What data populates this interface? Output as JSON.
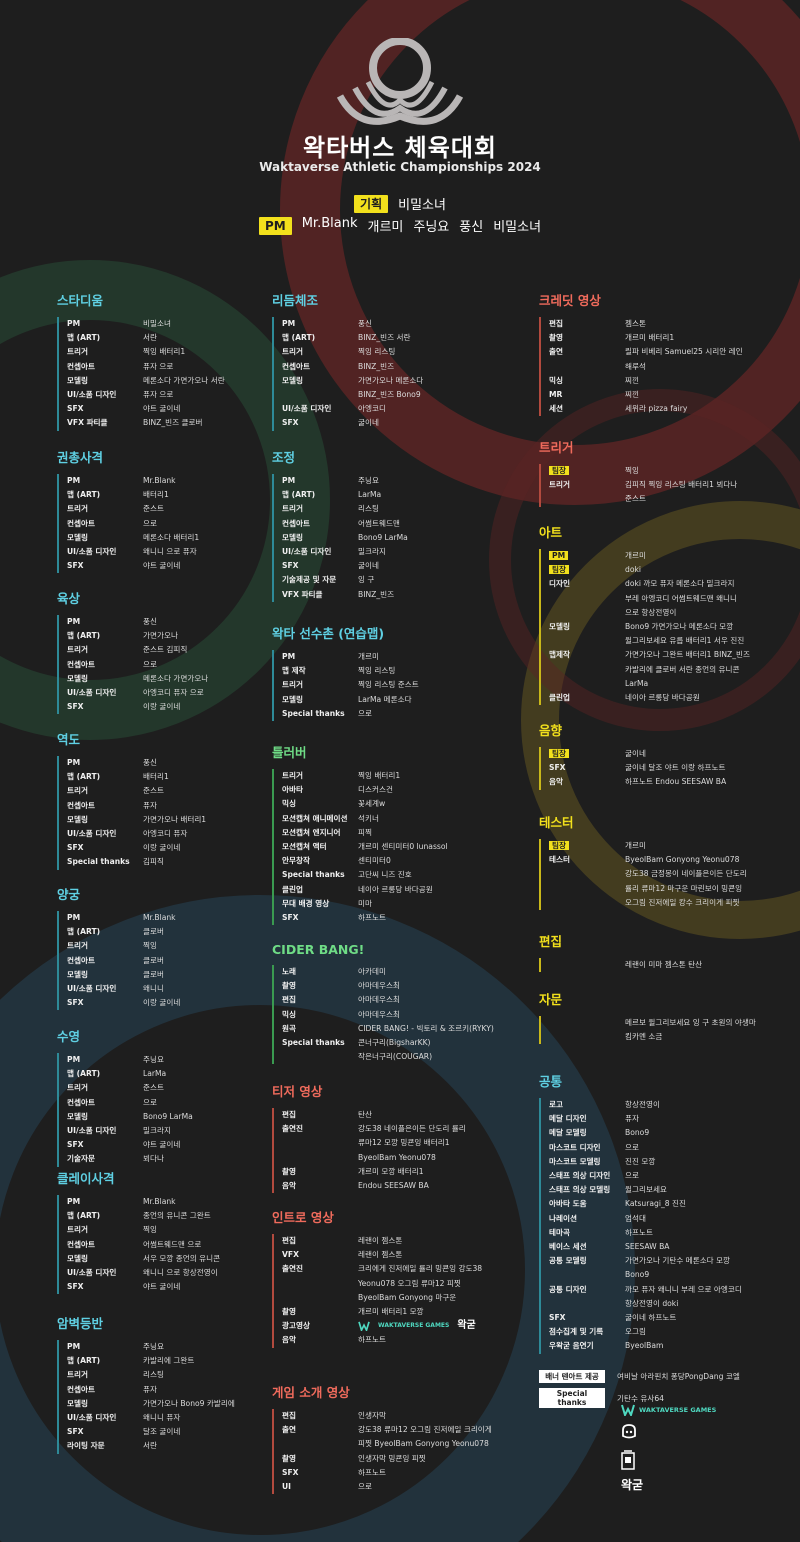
{
  "header": {
    "title": "왁타버스 체육대회",
    "subtitle": "Waktaverse Athletic Championships 2024",
    "planning_label": "기획",
    "planning_names": [
      "비밀소녀"
    ],
    "pm_label": "PM",
    "pm_names": [
      "Mr.Blank",
      "개르미",
      "주닝요",
      "풍신",
      "비밀소녀"
    ]
  },
  "colors": {
    "background": "#1e1e1e",
    "blue": "#5fd0e3",
    "green": "#6fdc86",
    "red": "#f06b5c",
    "yellow": "#f2e01c"
  },
  "columns": {
    "left": [
      {
        "title": "스타디움",
        "color": "blue",
        "rows": [
          {
            "role": "PM",
            "names": "비밀소녀"
          },
          {
            "role": "맵 (ART)",
            "names": "서란"
          },
          {
            "role": "트리거",
            "names": "찍잉  배터리1"
          },
          {
            "role": "컨셉아트",
            "names": "퓨자  으로"
          },
          {
            "role": "모델링",
            "names": "메론소다  가면가오나  서란"
          },
          {
            "role": "UI/소품 디자인",
            "names": "퓨자  으로"
          },
          {
            "role": "SFX",
            "names": "야트  굴이네"
          },
          {
            "role": "VFX 파티클",
            "names": "BINZ_빈즈  클로버"
          }
        ]
      },
      {
        "title": "권총사격",
        "color": "blue",
        "rows": [
          {
            "role": "PM",
            "names": "Mr.Blank"
          },
          {
            "role": "맵 (ART)",
            "names": "배터리1"
          },
          {
            "role": "트리거",
            "names": "준스트"
          },
          {
            "role": "컨셉아트",
            "names": "으로"
          },
          {
            "role": "모델링",
            "names": "메론소다  배터리1"
          },
          {
            "role": "UI/소품 디자인",
            "names": "왜니니  으로  퓨자"
          },
          {
            "role": "SFX",
            "names": "야트  굴이네"
          }
        ]
      },
      {
        "title": "육상",
        "color": "blue",
        "rows": [
          {
            "role": "PM",
            "names": "풍신"
          },
          {
            "role": "맵 (ART)",
            "names": "가면가오나"
          },
          {
            "role": "트리거",
            "names": "준스트  김피직"
          },
          {
            "role": "컨셉아트",
            "names": "으로"
          },
          {
            "role": "모델링",
            "names": "메론소다  가면가오나"
          },
          {
            "role": "UI/소품 디자인",
            "names": "아엥코디  퓨자  으로"
          },
          {
            "role": "SFX",
            "names": "이랑  굴이네"
          }
        ]
      },
      {
        "title": "역도",
        "color": "blue",
        "rows": [
          {
            "role": "PM",
            "names": "풍신"
          },
          {
            "role": "맵 (ART)",
            "names": "배터리1"
          },
          {
            "role": "트리거",
            "names": "준스트"
          },
          {
            "role": "컨셉아트",
            "names": "퓨자"
          },
          {
            "role": "모델링",
            "names": "가면가오나  배터리1"
          },
          {
            "role": "UI/소품 디자인",
            "names": "아엥코디  퓨자"
          },
          {
            "role": "SFX",
            "names": "이랑  굴이네"
          },
          {
            "role": "Special thanks",
            "names": "김피직"
          }
        ]
      },
      {
        "title": "양궁",
        "color": "blue",
        "rows": [
          {
            "role": "PM",
            "names": "Mr.Blank"
          },
          {
            "role": "맵 (ART)",
            "names": "클로버"
          },
          {
            "role": "트리거",
            "names": "찍잉"
          },
          {
            "role": "컨셉아트",
            "names": "클로버"
          },
          {
            "role": "모델링",
            "names": "클로버"
          },
          {
            "role": "UI/소품 디자인",
            "names": "왜니니"
          },
          {
            "role": "SFX",
            "names": "이랑  굴이네"
          }
        ]
      },
      {
        "title": "수영",
        "color": "blue",
        "rows": [
          {
            "role": "PM",
            "names": "주닝요"
          },
          {
            "role": "맵 (ART)",
            "names": "LarMa"
          },
          {
            "role": "트리거",
            "names": "준스트"
          },
          {
            "role": "컨셉아트",
            "names": "으로"
          },
          {
            "role": "모델링",
            "names": "Bono9  LarMa"
          },
          {
            "role": "UI/소품 디자인",
            "names": "밀크라지"
          },
          {
            "role": "SFX",
            "names": "야트  굴이네"
          },
          {
            "role": "기술자문",
            "names": "뵈다나"
          }
        ]
      },
      {
        "title": "클레이사격",
        "color": "blue",
        "rows": [
          {
            "role": "PM",
            "names": "Mr.Blank"
          },
          {
            "role": "맵 (ART)",
            "names": "종언의 유니콘  그완트"
          },
          {
            "role": "트리거",
            "names": "찍잉"
          },
          {
            "role": "컨셉아트",
            "names": "어썸트웨드맨  으로"
          },
          {
            "role": "모델링",
            "names": "서우  모깡  종언의 유니콘"
          },
          {
            "role": "UI/소품 디자인",
            "names": "왜니니  으로  항상전영이"
          },
          {
            "role": "SFX",
            "names": "야트  굴이네"
          }
        ]
      },
      {
        "title": "암벽등반",
        "color": "blue",
        "rows": [
          {
            "role": "PM",
            "names": "주닝요"
          },
          {
            "role": "맵 (ART)",
            "names": "카발리에  그완트"
          },
          {
            "role": "트리거",
            "names": "리스팅"
          },
          {
            "role": "컨셉아트",
            "names": "퓨자"
          },
          {
            "role": "모델링",
            "names": "가면가오나  Bono9  카발리에"
          },
          {
            "role": "UI/소품 디자인",
            "names": "왜니니  퓨자"
          },
          {
            "role": "SFX",
            "names": "달조  굴이네"
          },
          {
            "role": "라이팅 자문",
            "names": "서란"
          }
        ]
      }
    ],
    "middle": [
      {
        "title": "리듬체조",
        "color": "blue",
        "rows": [
          {
            "role": "PM",
            "names": "풍신"
          },
          {
            "role": "맵 (ART)",
            "names": "BINZ_빈즈  서란"
          },
          {
            "role": "트리거",
            "names": "찍잉  리스팅"
          },
          {
            "role": "컨셉아트",
            "names": "BINZ_빈즈"
          },
          {
            "role": "모델링",
            "names": "가면가오나  메론소다"
          },
          {
            "role": "",
            "names": "BINZ_빈즈  Bono9"
          },
          {
            "role": "UI/소품 디자인",
            "names": "아엥코디"
          },
          {
            "role": "SFX",
            "names": "굴이네"
          }
        ]
      },
      {
        "title": "조정",
        "color": "blue",
        "rows": [
          {
            "role": "PM",
            "names": "주닝요"
          },
          {
            "role": "맵 (ART)",
            "names": "LarMa"
          },
          {
            "role": "트리거",
            "names": "리스팅"
          },
          {
            "role": "컨셉아트",
            "names": "어썸트웨드맨"
          },
          {
            "role": "모델링",
            "names": "Bono9  LarMa"
          },
          {
            "role": "UI/소품 디자인",
            "names": "밀크라지"
          },
          {
            "role": "SFX",
            "names": "굴이네"
          },
          {
            "role": "기술제공 및 자문",
            "names": "잉 구"
          },
          {
            "role": "VFX 파티클",
            "names": "BINZ_빈즈"
          }
        ]
      },
      {
        "title": "왁타 선수촌 (연습맵)",
        "color": "blue",
        "rows": [
          {
            "role": "PM",
            "names": "개르미"
          },
          {
            "role": "맵 제작",
            "names": "찍잉  리스팅"
          },
          {
            "role": "트리거",
            "names": "찍잉  리스팅  준스트"
          },
          {
            "role": "모델링",
            "names": "LarMa  메론소다"
          },
          {
            "role": "Special thanks",
            "names": "으로"
          }
        ]
      },
      {
        "title": "틀러버",
        "color": "green",
        "rows": [
          {
            "role": "트리거",
            "names": "찍잉  배터리1"
          },
          {
            "role": "아바타",
            "names": "디스커스건"
          },
          {
            "role": "믹싱",
            "names": "꽃세계w"
          },
          {
            "role": "모션캡쳐 애니메이션",
            "names": "석키너"
          },
          {
            "role": "모션캡쳐 엔지니어",
            "names": "피찍"
          },
          {
            "role": "모션캡쳐 액터",
            "names": "개르미  센티미터0  lunassol"
          },
          {
            "role": "안무창작",
            "names": "센티미터0"
          },
          {
            "role": "Special thanks",
            "names": "고단씨  니즈  진호"
          },
          {
            "role": "클린업",
            "names": "네이아  르롱당  바다공원"
          },
          {
            "role": "무대 배경 영상",
            "names": "미마"
          },
          {
            "role": "SFX",
            "names": "하프노트"
          }
        ]
      },
      {
        "title": "CIDER BANG!",
        "color": "green",
        "rows": [
          {
            "role": "노래",
            "names": "아카데미"
          },
          {
            "role": "촬영",
            "names": "아마데우스최"
          },
          {
            "role": "편집",
            "names": "아마데우스최"
          },
          {
            "role": "믹싱",
            "names": "아마데우스최"
          },
          {
            "role": "원곡",
            "names": "CIDER BANG! - 빅토리 & 조르키(RYKY)"
          },
          {
            "role": "Special thanks",
            "names": "콘너구리(BigsharKK)"
          },
          {
            "role": "",
            "names": "작은너구리(COUGAR)"
          }
        ]
      },
      {
        "title": "티저 영상",
        "color": "red",
        "rows": [
          {
            "role": "편집",
            "names": "탄산"
          },
          {
            "role": "출연진",
            "names": "강도38  네이플은이든  단도리  률리"
          },
          {
            "role": "",
            "names": "류마12  모깡  밍쿈잉  배터리1"
          },
          {
            "role": "",
            "names": "ByeolBam  Yeonu078"
          },
          {
            "role": "촬영",
            "names": "개르미  모깡  배터리1"
          },
          {
            "role": "음악",
            "names": "Endou  SEESAW BA"
          }
        ]
      },
      {
        "title": "인트로 영상",
        "color": "red",
        "rows": [
          {
            "role": "편집",
            "names": "레랜이  젬스톤"
          },
          {
            "role": "VFX",
            "names": "레랜이  젬스톤"
          },
          {
            "role": "출연진",
            "names": "크리에게  진저에일  률리  밍쿈잉  강도38"
          },
          {
            "role": "",
            "names": "Yeonu078  오그림  류마12  피찟"
          },
          {
            "role": "",
            "names": "ByeolBam  Gonyong  마구운"
          },
          {
            "role": "촬영",
            "names": "개르미  배터리1  모깡"
          },
          {
            "role": "광고영상",
            "names": ""
          },
          {
            "role": "음악",
            "names": "하프노트"
          }
        ]
      },
      {
        "title": "게임 소개 영상",
        "color": "red",
        "rows": [
          {
            "role": "편집",
            "names": "인생자막"
          },
          {
            "role": "출연",
            "names": "강도38  류마12  오그림  진저에일  크리이게"
          },
          {
            "role": "",
            "names": "피찟  ByeolBam  Gonyong  Yeonu078"
          },
          {
            "role": "촬영",
            "names": "인생자막  밍쿈잉  피찟"
          },
          {
            "role": "SFX",
            "names": "하프노트"
          },
          {
            "role": "UI",
            "names": "으로"
          }
        ]
      }
    ],
    "right": [
      {
        "title": "크레딧 영상",
        "color": "red",
        "rows": [
          {
            "role": "편집",
            "names": "젬스톤"
          },
          {
            "role": "촬영",
            "names": "개르미  배터리1"
          },
          {
            "role": "출연",
            "names": "릴파  비베리  Samuel25  시리안 레인"
          },
          {
            "role": "",
            "names": "해루석"
          },
          {
            "role": "믹싱",
            "names": "찌낀"
          },
          {
            "role": "MR",
            "names": "찌낀"
          },
          {
            "role": "세션",
            "names": "세위라  pizza fairy"
          }
        ]
      },
      {
        "title": "트리거",
        "color": "red",
        "rows": [
          {
            "role": "팀장",
            "tag": true,
            "names": "찍잉"
          },
          {
            "role": "트리거",
            "names": "김피직  찍잉  리스팅  배터리1  뵈다나"
          },
          {
            "role": "",
            "names": "준스트"
          }
        ]
      },
      {
        "title": "아트",
        "color": "yellow",
        "rows": [
          {
            "role": "PM",
            "tag": true,
            "names": "개르미"
          },
          {
            "role": "팀장",
            "tag": true,
            "names": "doki"
          },
          {
            "role": "디자인",
            "names": "doki  까모  퓨자  메론소다  밀크라지"
          },
          {
            "role": "",
            "names": "부레  아엥코디  어썸트웨드맨  왜니니"
          },
          {
            "role": "",
            "names": "으로  항상전영이"
          },
          {
            "role": "모델링",
            "names": "Bono9  가면가오나  메론소다  모깡"
          },
          {
            "role": "",
            "names": "윌그리보세요  유릅  배터리1  서우  진진"
          },
          {
            "role": "맵제작",
            "names": "가면가오나  그완트  배터리1  BINZ_빈즈"
          },
          {
            "role": "",
            "names": "카발리에  클로버  서란  종언의 유니콘"
          },
          {
            "role": "",
            "names": "LarMa"
          },
          {
            "role": "클린업",
            "names": "네이아  르롱당  바다공원"
          }
        ]
      },
      {
        "title": "음향",
        "color": "yellow",
        "rows": [
          {
            "role": "팀장",
            "tag": true,
            "names": "굴이네"
          },
          {
            "role": "SFX",
            "names": "굴이네  달조  야트  이랑  하프노트"
          },
          {
            "role": "음악",
            "names": "하프노트  Endou  SEESAW BA"
          }
        ]
      },
      {
        "title": "테스터",
        "color": "yellow",
        "rows": [
          {
            "role": "팀장",
            "tag": true,
            "names": "개르미"
          },
          {
            "role": "테스터",
            "names": "ByeolBam  Gonyong  Yeonu078"
          },
          {
            "role": "",
            "names": "강도38  금정몽이  네이플은이든  단도리"
          },
          {
            "role": "",
            "names": "률리  류마12  마구운  마린보이  밍쿈잉"
          },
          {
            "role": "",
            "names": "오그림  진저에일  캉수  크리이게  피찟"
          }
        ]
      },
      {
        "title": "편집",
        "color": "yellow",
        "rows": [
          {
            "role": "",
            "names": "레랜이  미마  젬스톤  탄산"
          }
        ]
      },
      {
        "title": "자문",
        "color": "yellow",
        "rows": [
          {
            "role": "",
            "names": "메르보  윌그리보세요  잉 구  초원의 야생마"
          },
          {
            "role": "",
            "names": "킴카멘  소금"
          }
        ]
      },
      {
        "title": "공통",
        "color": "blue",
        "rows": [
          {
            "role": "로고",
            "names": "항상전영이"
          },
          {
            "role": "메달 디자인",
            "names": "퓨자"
          },
          {
            "role": "메달 모델링",
            "names": "Bono9"
          },
          {
            "role": "마스코트 디자인",
            "names": "으로"
          },
          {
            "role": "마스코트 모델링",
            "names": "진진  모깡"
          },
          {
            "role": "스태프 의상 디자인",
            "names": "으로"
          },
          {
            "role": "스태프 의상 모델링",
            "names": "윌그리보세요"
          },
          {
            "role": "아바타 도움",
            "names": "Katsuragi_8  진진"
          },
          {
            "role": "나레이션",
            "names": "엄석대"
          },
          {
            "role": "테마곡",
            "names": "하프노트"
          },
          {
            "role": "베이스 세션",
            "names": "SEESAW BA"
          },
          {
            "role": "공통 모델링",
            "names": "가면가오나  기탄수  메론소다  모깡"
          },
          {
            "role": "",
            "names": "Bono9"
          },
          {
            "role": "공통 디자인",
            "names": "까모  퓨자  왜니니  부레  으로  아엥코디"
          },
          {
            "role": "",
            "names": "항상전영이  doki"
          },
          {
            "role": "SFX",
            "names": "굴이네  하프노트"
          },
          {
            "role": "점수집계 및 기록",
            "names": "오그림"
          },
          {
            "role": "우왁굳 음연기",
            "names": "ByeolBam"
          }
        ]
      }
    ]
  },
  "footer": {
    "banner_label": "배너 텐아트 제공",
    "banner_names": "여비날  아라핀치  퐁당PongDang  코엘",
    "thanks_label": "Special thanks",
    "thanks_names": "기탄수  유사64",
    "waktaverse_games": "WAKTAVERSE GAMES",
    "wakgood_text": "왁굳"
  }
}
